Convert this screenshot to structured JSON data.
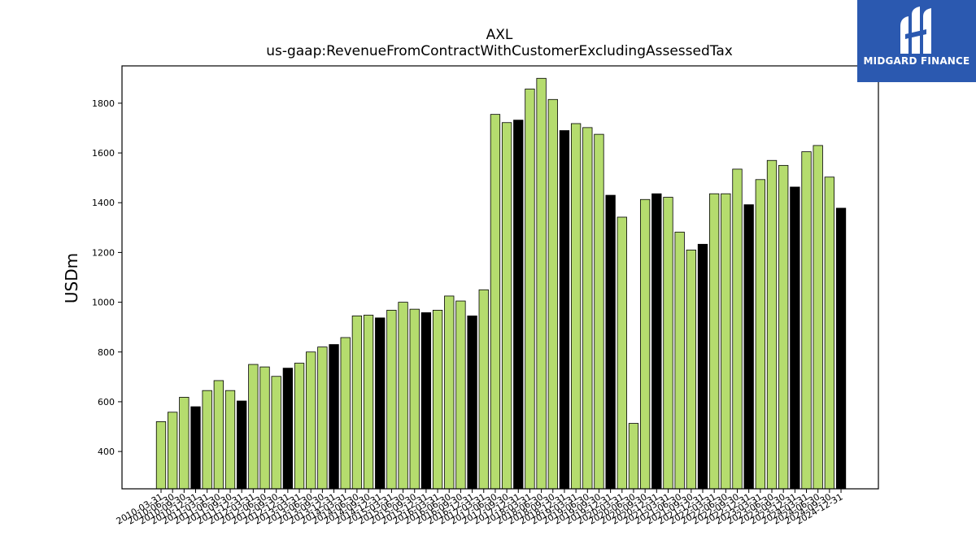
{
  "brand": {
    "name": "MIDGARD FINANCE",
    "bg_color": "#2b59b0"
  },
  "chart_data": {
    "type": "bar",
    "title": "AXL",
    "subtitle": "us-gaap:RevenueFromContractWithCustomerExcludingAssessedTax",
    "xlabel": "",
    "ylabel": "USDm",
    "ylim": [
      250,
      1950
    ],
    "yticks": [
      400,
      600,
      800,
      1000,
      1200,
      1400,
      1600,
      1800
    ],
    "grid": false,
    "colors": {
      "quarter": "#b5dc6e",
      "annual": "#000000"
    },
    "categories": [
      "2010-03-31",
      "2010-06-30",
      "2010-09-30",
      "2010-12-31",
      "2011-03-31",
      "2011-06-30",
      "2011-09-30",
      "2011-12-31",
      "2012-03-31",
      "2012-06-30",
      "2012-09-30",
      "2012-12-31",
      "2013-03-31",
      "2013-06-30",
      "2013-09-30",
      "2013-12-31",
      "2014-03-31",
      "2014-06-30",
      "2014-09-30",
      "2014-12-31",
      "2015-03-31",
      "2015-06-30",
      "2015-09-30",
      "2015-12-31",
      "2016-03-31",
      "2016-06-30",
      "2016-09-30",
      "2016-12-31",
      "2017-03-31",
      "2017-06-30",
      "2017-09-30",
      "2017-12-31",
      "2018-03-31",
      "2018-06-30",
      "2018-09-30",
      "2018-12-31",
      "2019-03-31",
      "2019-06-30",
      "2019-09-30",
      "2019-12-31",
      "2020-03-31",
      "2020-06-30",
      "2020-09-30",
      "2020-12-31",
      "2021-03-31",
      "2021-06-30",
      "2021-09-30",
      "2021-12-31",
      "2022-03-31",
      "2022-06-30",
      "2022-09-30",
      "2022-12-31",
      "2023-03-31",
      "2023-06-30",
      "2023-09-30",
      "2023-12-31",
      "2024-03-31",
      "2024-06-30",
      "2024-09-30",
      "2024-12-31"
    ],
    "values": [
      520,
      558,
      618,
      580,
      645,
      685,
      645,
      603,
      750,
      740,
      702,
      735,
      755,
      800,
      820,
      830,
      858,
      945,
      948,
      937,
      968,
      1000,
      972,
      958,
      968,
      1025,
      1005,
      945,
      1050,
      1755,
      1722,
      1732,
      1857,
      1900,
      1815,
      1690,
      1718,
      1702,
      1675,
      1430,
      1342,
      513,
      1413,
      1436,
      1422,
      1282,
      1210,
      1233,
      1436,
      1436,
      1535,
      1392,
      1493,
      1570,
      1550,
      1463,
      1605,
      1630,
      1503,
      1378
    ]
  }
}
